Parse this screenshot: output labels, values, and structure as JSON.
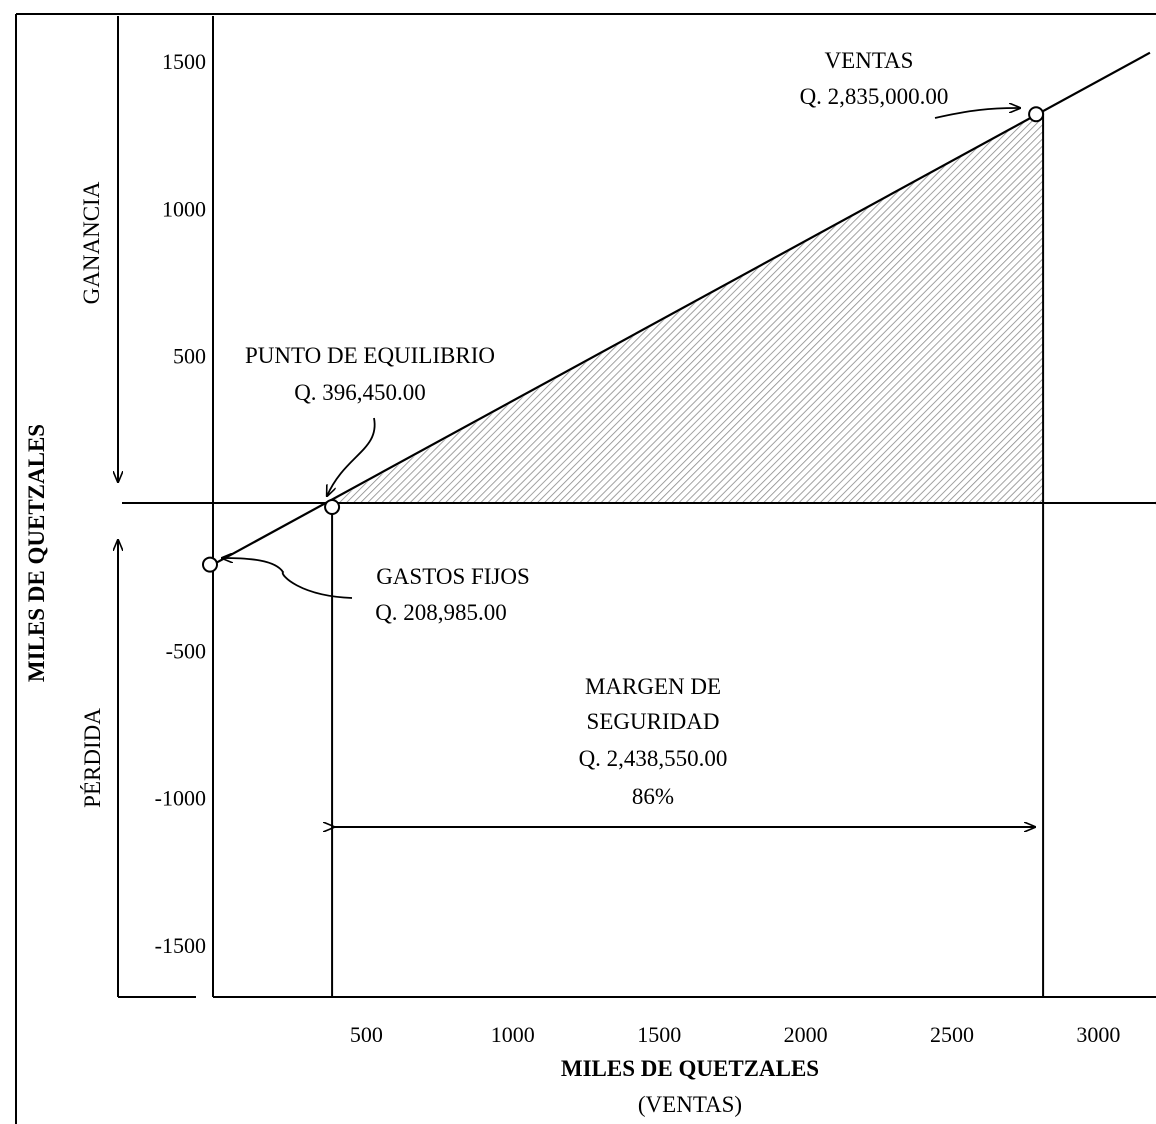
{
  "chart_data": {
    "type": "line",
    "title": "",
    "xlabel": "MILES DE QUETZALES",
    "xlabel_sub": "(VENTAS)",
    "ylabel": "MILES DE QUETZALES",
    "xlim": [
      0,
      3200
    ],
    "ylim": [
      -1700,
      1700
    ],
    "x_ticks": [
      500,
      1000,
      1500,
      2000,
      2500,
      3000
    ],
    "y_ticks": [
      1500,
      1000,
      500,
      -500,
      -1000,
      -1500
    ],
    "grid": false,
    "legend": "none",
    "side_labels": {
      "profit": "GANANCIA",
      "loss": "PÉRDIDA"
    },
    "series": [
      {
        "x": [
          0,
          396.45,
          2835,
          3200
        ],
        "y": [
          -208.985,
          0,
          1326,
          1528
        ]
      }
    ],
    "points": [
      {
        "id": "gastos_fijos",
        "x": 0,
        "y": -208.985,
        "label": "GASTOS FIJOS",
        "value": "Q. 208,985.00"
      },
      {
        "id": "punto_equilibrio",
        "x": 396.45,
        "y": 0,
        "label": "PUNTO DE EQUILIBRIO",
        "value": "Q. 396,450.00"
      },
      {
        "id": "ventas",
        "x": 2835,
        "y": 1326,
        "label": "VENTAS",
        "value": "Q. 2,835,000.00"
      }
    ],
    "margin": {
      "x_start": 396.45,
      "x_end": 2835,
      "label1": "MARGEN DE",
      "label2": "SEGURIDAD",
      "value": "Q. 2,438,550.00",
      "percent": "86%"
    }
  }
}
